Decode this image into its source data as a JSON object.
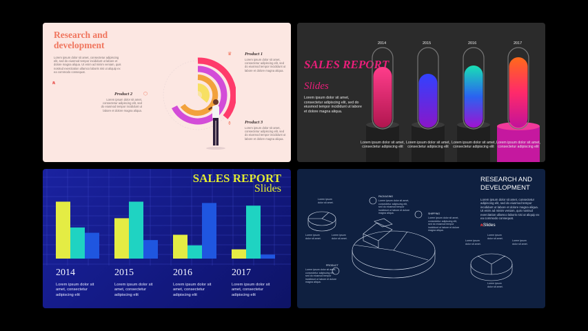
{
  "slide1": {
    "title": "Research and development",
    "intro": "Lorem ipsum dolor sit amet, consectetur adipiscing elit, sed do eiusmod tempor incididunt ut labore et dolore magna aliqua. Ut enim ad minim veniam, quis nostrud exercitation ullamco laboris nisi ut aliquip ex ea commodo consequat.",
    "products": [
      {
        "name": "Product 1",
        "text": "Lorem ipsum dolor sit amet, consectetur adipiscing elit, sed do eiusmod tempor incididunt ut labore et dolore magna aliqua."
      },
      {
        "name": "Product 2",
        "text": "Lorem ipsum dolor sit amet, consectetur adipiscing elit, sed do eiusmod tempor incididunt ut labore et dolore magna aliqua."
      },
      {
        "name": "Product 3",
        "text": "Lorem ipsum dolor sit amet, consectetur adipiscing elit, sed do eiusmod tempor incididunt ut labore et dolore magna aliqua."
      }
    ],
    "colors": {
      "accent": "#f0765e",
      "background": "#fce7e2"
    }
  },
  "slide2": {
    "title": "SALES REPORT",
    "subtitle": "Slides",
    "body": "Lorem ipsum dolor sit amet, consectetur adipiscing elit, sed do eiusmod tempor incididunt ut labore et dolore magna aliqua.",
    "years": [
      "2014",
      "2015",
      "2016",
      "2017"
    ],
    "caption": "Lorem ipsum dolor sit amet, consectetur adipiscing elit",
    "tube_fill": [
      0.7,
      0.6,
      0.72,
      0.78
    ],
    "colors": {
      "accent": "#e91e79"
    }
  },
  "slide3": {
    "title": "SALES REPORT",
    "subtitle": "Slides",
    "caption": "Lorem ipsum dolor sit amet, consectetur adipiscing elit",
    "chart_data": {
      "type": "bar",
      "categories": [
        "2014",
        "2015",
        "2016",
        "2017"
      ],
      "series": [
        {
          "values": [
            0.86,
            0.61,
            0.36,
            0.14
          ],
          "color": "#e4ec44"
        },
        {
          "values": [
            0.47,
            0.86,
            0.2,
            0.8
          ],
          "color": "#1fd3c2"
        },
        {
          "values": [
            0.39,
            0.28,
            0.84,
            0.06
          ],
          "color": "#1f56e0"
        }
      ],
      "grid": true
    }
  },
  "slide4": {
    "title": "RESEARCH AND DEVELOPMENT",
    "body": "Lorem ipsum dolor sit amet, consectetur adipiscing elit, sed do eiusmod tempor incididunt ut labore et dolore magna aliqua. Ut enim ad minim veniam, quis nostrud exercitation ullamco laboris nisi ut aliquip ex ea commodo consequat.",
    "logo": "Slides",
    "labels": {
      "packaging": "PACKAGING",
      "shipping": "SHIPPING",
      "product": "PRODUCT"
    },
    "short_text": "Lorem ipsum dolor sit amet.",
    "long_text": "Lorem ipsum dolor sit amet, consectetur adipiscing elit, sed do eiusmod tempor incididunt ut labore et dolore magna aliqua."
  }
}
